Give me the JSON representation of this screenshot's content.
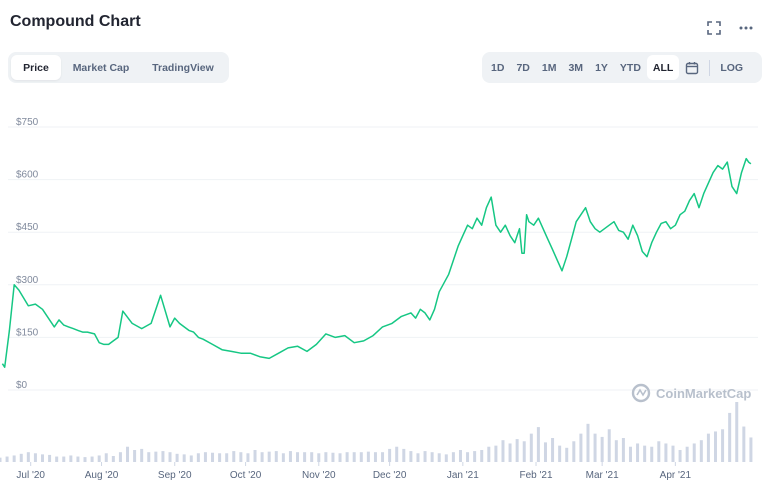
{
  "title": "Compound Chart",
  "tabs": [
    {
      "label": "Price",
      "active": true
    },
    {
      "label": "Market Cap",
      "active": false
    },
    {
      "label": "TradingView",
      "active": false
    }
  ],
  "ranges": [
    {
      "label": "1D",
      "active": false
    },
    {
      "label": "7D",
      "active": false
    },
    {
      "label": "1M",
      "active": false
    },
    {
      "label": "3M",
      "active": false
    },
    {
      "label": "1Y",
      "active": false
    },
    {
      "label": "YTD",
      "active": false
    },
    {
      "label": "ALL",
      "active": true
    }
  ],
  "log_label": "LOG",
  "icons": {
    "fullscreen": "fullscreen-icon",
    "more": "more-icon",
    "calendar": "calendar-icon",
    "watermark": "coinmarketcap-logo"
  },
  "colors": {
    "line": "#16c784",
    "volume": "#cfd6e4",
    "grid": "#eff2f5"
  },
  "watermark": "CoinMarketCap",
  "chart_data": {
    "type": "line",
    "ylabel_prefix": "$",
    "yticks": [
      "$750",
      "$600",
      "$450",
      "$300",
      "$150",
      "$0"
    ],
    "ytick_values": [
      750,
      600,
      450,
      300,
      150,
      0
    ],
    "ylim": [
      0,
      750
    ],
    "xticks": [
      "Jul '20",
      "Aug '20",
      "Sep '20",
      "Oct '20",
      "Nov '20",
      "Dec '20",
      "Jan '21",
      "Feb '21",
      "Mar '21",
      "Apr '21"
    ],
    "xtick_positions": [
      1,
      31,
      62,
      92,
      123,
      153,
      184,
      215,
      243,
      274
    ],
    "x_units": "days since Jun 30 2020",
    "xlim": [
      -12,
      309
    ],
    "grid": true,
    "price": {
      "x": [
        -11,
        -10,
        -8,
        -6,
        -4,
        0,
        3,
        6,
        9,
        11,
        13,
        15,
        17,
        19,
        21,
        23,
        25,
        28,
        30,
        32,
        34,
        36,
        38,
        40,
        44,
        48,
        52,
        56,
        60,
        62,
        64,
        66,
        68,
        70,
        72,
        74,
        78,
        82,
        86,
        90,
        94,
        98,
        102,
        106,
        110,
        114,
        118,
        122,
        126,
        130,
        134,
        138,
        142,
        146,
        150,
        154,
        158,
        162,
        164,
        166,
        168,
        170,
        172,
        174,
        178,
        182,
        184,
        186,
        188,
        190,
        192,
        194,
        196,
        198,
        200,
        202,
        204,
        206,
        207,
        208,
        209,
        210,
        211,
        212,
        214,
        216,
        218,
        220,
        222,
        224,
        226,
        228,
        230,
        232,
        234,
        236,
        238,
        240,
        242,
        244,
        246,
        248,
        250,
        252,
        254,
        256,
        258,
        260,
        262,
        264,
        266,
        268,
        270,
        272,
        274,
        276,
        278,
        280,
        282,
        284,
        286,
        288,
        290,
        292,
        294,
        296,
        298,
        300,
        302,
        304,
        305,
        306
      ],
      "values": [
        75,
        65,
        170,
        300,
        285,
        240,
        245,
        230,
        200,
        180,
        200,
        185,
        180,
        175,
        170,
        165,
        165,
        160,
        135,
        130,
        130,
        140,
        150,
        225,
        190,
        175,
        190,
        270,
        180,
        205,
        190,
        180,
        170,
        165,
        150,
        145,
        130,
        115,
        110,
        105,
        105,
        95,
        90,
        105,
        120,
        125,
        110,
        130,
        160,
        150,
        155,
        135,
        140,
        155,
        180,
        190,
        210,
        220,
        205,
        230,
        220,
        200,
        230,
        280,
        330,
        410,
        440,
        470,
        460,
        490,
        470,
        520,
        550,
        470,
        450,
        470,
        440,
        420,
        440,
        460,
        390,
        390,
        500,
        480,
        470,
        490,
        460,
        430,
        400,
        370,
        340,
        380,
        430,
        480,
        500,
        520,
        480,
        460,
        450,
        460,
        470,
        480,
        455,
        450,
        430,
        470,
        440,
        395,
        380,
        420,
        450,
        475,
        480,
        460,
        470,
        500,
        510,
        540,
        560,
        520,
        560,
        590,
        620,
        640,
        630,
        650,
        580,
        560,
        620,
        660,
        650,
        645
      ]
    },
    "volume": {
      "x": [
        -12,
        -9,
        -6,
        -3,
        0,
        3,
        6,
        9,
        12,
        15,
        18,
        21,
        24,
        27,
        30,
        33,
        36,
        39,
        42,
        45,
        48,
        51,
        54,
        57,
        60,
        63,
        66,
        69,
        72,
        75,
        78,
        81,
        84,
        87,
        90,
        93,
        96,
        99,
        102,
        105,
        108,
        111,
        114,
        117,
        120,
        123,
        126,
        129,
        132,
        135,
        138,
        141,
        144,
        147,
        150,
        153,
        156,
        159,
        162,
        165,
        168,
        171,
        174,
        177,
        180,
        183,
        186,
        189,
        192,
        195,
        198,
        201,
        204,
        207,
        210,
        213,
        216,
        219,
        222,
        225,
        228,
        231,
        234,
        237,
        240,
        243,
        246,
        249,
        252,
        255,
        258,
        261,
        264,
        267,
        270,
        273,
        276,
        279,
        282,
        285,
        288,
        291,
        294,
        297,
        300,
        303,
        306
      ],
      "values": [
        8,
        10,
        12,
        15,
        18,
        16,
        14,
        13,
        10,
        10,
        12,
        10,
        9,
        10,
        12,
        16,
        11,
        18,
        28,
        22,
        24,
        18,
        19,
        20,
        18,
        15,
        14,
        12,
        16,
        18,
        17,
        16,
        16,
        20,
        18,
        16,
        22,
        18,
        19,
        20,
        16,
        20,
        18,
        18,
        18,
        16,
        18,
        17,
        16,
        18,
        18,
        18,
        19,
        18,
        18,
        24,
        28,
        24,
        20,
        16,
        20,
        18,
        16,
        14,
        18,
        22,
        18,
        20,
        22,
        28,
        30,
        40,
        34,
        42,
        38,
        52,
        64,
        36,
        44,
        30,
        26,
        38,
        52,
        70,
        52,
        46,
        60,
        40,
        44,
        28,
        34,
        30,
        28,
        38,
        34,
        30,
        22,
        28,
        34,
        40,
        52,
        56,
        60,
        90,
        110,
        65,
        45
      ]
    }
  }
}
